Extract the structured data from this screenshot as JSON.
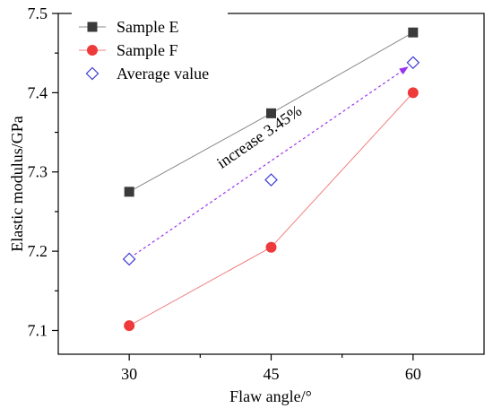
{
  "chart_data": {
    "type": "line",
    "xlabel": "Flaw angle/°",
    "ylabel": "Elastic modulus/GPa",
    "x": [
      30,
      45,
      60
    ],
    "x_ticks": [
      30,
      45,
      60
    ],
    "xlim": [
      22.5,
      67.5
    ],
    "y_ticks": [
      7.1,
      7.2,
      7.3,
      7.4,
      7.5
    ],
    "ylim": [
      7.07,
      7.5
    ],
    "grid": false,
    "legend_position": "top-left",
    "series": [
      {
        "name": "Sample E",
        "values": [
          7.275,
          7.374,
          7.476
        ],
        "color": "#888888",
        "marker": "square",
        "marker_color": "#3a3a3a",
        "marker_edge": "#3a3a3a"
      },
      {
        "name": "Sample F",
        "values": [
          7.106,
          7.205,
          7.4
        ],
        "color": "#f08080",
        "marker": "circle",
        "marker_color": "#ee3a3a",
        "marker_edge": "#ee3a3a"
      },
      {
        "name": "Average value",
        "values": [
          7.19,
          7.29,
          7.438
        ],
        "color": "none",
        "marker": "diamond-open",
        "marker_color": "#ffffff",
        "marker_edge": "#3b3bd6"
      }
    ],
    "annotations": [
      {
        "text": "increase 3.45%",
        "type": "dashed-arrow",
        "color": "#9933ee",
        "from": [
          30,
          7.19
        ],
        "to": [
          60,
          7.438
        ]
      }
    ]
  }
}
